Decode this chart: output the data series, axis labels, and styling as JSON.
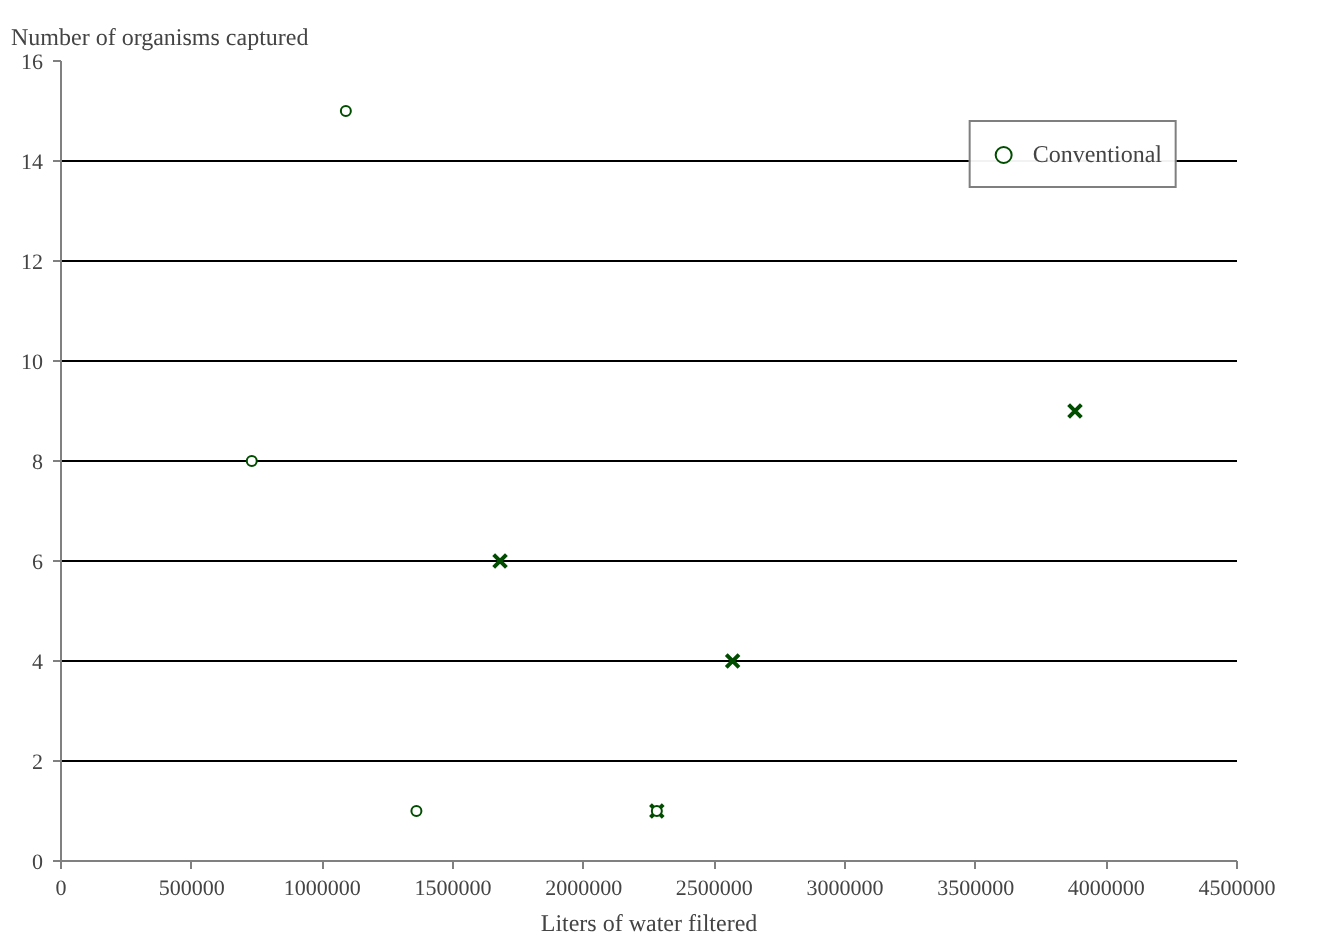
{
  "chart_data": {
    "type": "scatter",
    "xlabel": "Liters of water filtered",
    "ylabel": "Number of organisms captured",
    "xlim": [
      0,
      4500000
    ],
    "xticks": [
      0,
      500000,
      1000000,
      1500000,
      2000000,
      2500000,
      3000000,
      3500000,
      4000000,
      4500000
    ],
    "ylim": [
      0,
      16
    ],
    "yticks": [
      0,
      2,
      4,
      6,
      8,
      10,
      12,
      14,
      16
    ],
    "grid": "y",
    "legend": "top right",
    "series": [
      {
        "color": "#004d00",
        "marker": "cross",
        "x": [
          1680000,
          2570000,
          3880000,
          2280000
        ],
        "values": [
          6,
          4,
          9,
          1
        ]
      },
      {
        "name": "Conventional",
        "color": "#004d00",
        "marker": "circle",
        "x": [
          730000,
          1090000,
          1360000,
          2280000
        ],
        "values": [
          8,
          15,
          1,
          1
        ]
      }
    ]
  }
}
